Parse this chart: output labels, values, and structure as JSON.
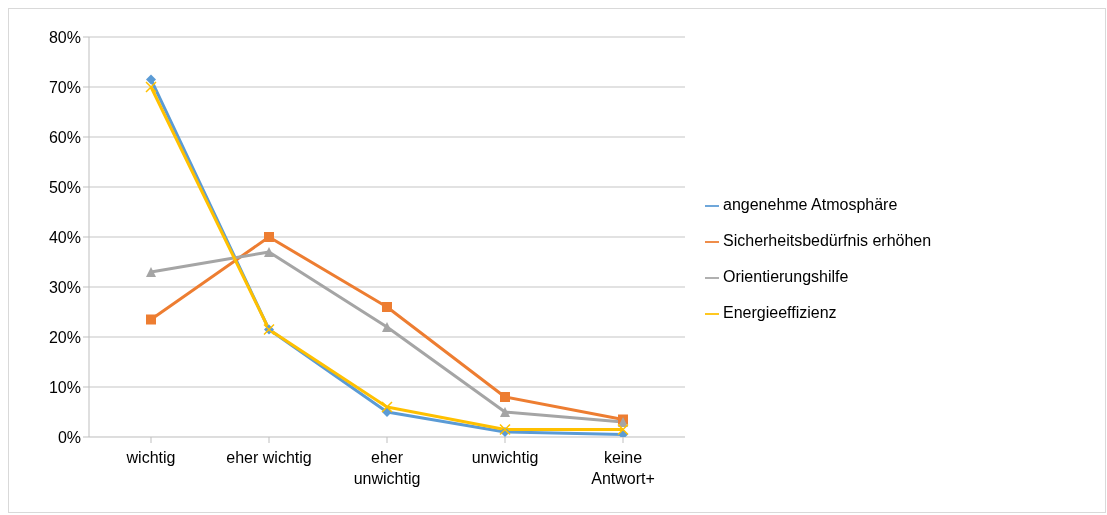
{
  "chart_data": {
    "type": "line",
    "categories": [
      "wichtig",
      "eher wichtig",
      "eher unwichtig",
      "unwichtig",
      "keine Antwort+"
    ],
    "series": [
      {
        "name": "angenehme Atmosphäre",
        "color": "#5b9bd5",
        "marker": "diamond",
        "values": [
          71.5,
          21.5,
          5,
          1,
          0.5
        ]
      },
      {
        "name": "Sicherheitsbedürfnis erhöhen",
        "color": "#ed7d31",
        "marker": "square",
        "values": [
          23.5,
          40,
          26,
          8,
          3.5
        ]
      },
      {
        "name": "Orientierungshilfe",
        "color": "#a5a5a5",
        "marker": "triangle",
        "values": [
          33,
          37,
          22,
          5,
          3
        ]
      },
      {
        "name": "Energieeffizienz",
        "color": "#ffc000",
        "marker": "cross",
        "values": [
          70,
          21.5,
          6,
          1.5,
          1.5
        ]
      }
    ],
    "ylim": [
      0,
      80
    ],
    "yticks": [
      {
        "value": 0,
        "label": "0%"
      },
      {
        "value": 10,
        "label": "10%"
      },
      {
        "value": 20,
        "label": "20%"
      },
      {
        "value": 30,
        "label": "30%"
      },
      {
        "value": 40,
        "label": "40%"
      },
      {
        "value": 50,
        "label": "50%"
      },
      {
        "value": 60,
        "label": "60%"
      },
      {
        "value": 70,
        "label": "70%"
      },
      {
        "value": 80,
        "label": "80%"
      }
    ],
    "grid": "y",
    "legend": "right",
    "line_style": "solid"
  }
}
